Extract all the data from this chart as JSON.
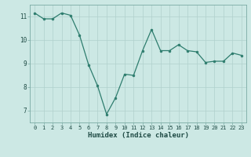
{
  "x": [
    0,
    1,
    2,
    3,
    4,
    5,
    6,
    7,
    8,
    9,
    10,
    11,
    12,
    13,
    14,
    15,
    16,
    17,
    18,
    19,
    20,
    21,
    22,
    23
  ],
  "y": [
    11.15,
    10.9,
    10.9,
    11.15,
    11.05,
    10.2,
    8.95,
    8.05,
    6.85,
    7.55,
    8.55,
    8.5,
    9.55,
    10.45,
    9.55,
    9.55,
    9.8,
    9.55,
    9.5,
    9.05,
    9.1,
    9.1,
    9.45,
    9.35
  ],
  "xlabel": "Humidex (Indice chaleur)",
  "xlim": [
    -0.5,
    23.5
  ],
  "ylim": [
    6.5,
    11.5
  ],
  "yticks": [
    7,
    8,
    9,
    10,
    11
  ],
  "xticks": [
    0,
    1,
    2,
    3,
    4,
    5,
    6,
    7,
    8,
    9,
    10,
    11,
    12,
    13,
    14,
    15,
    16,
    17,
    18,
    19,
    20,
    21,
    22,
    23
  ],
  "line_color": "#2e7d6e",
  "marker_color": "#2e7d6e",
  "bg_color": "#cce8e4",
  "grid_color": "#b0d0cc",
  "spine_color": "#7aaba4",
  "text_color": "#1e4a44",
  "tick_fontsize": 5.0,
  "xlabel_fontsize": 6.5,
  "linewidth": 0.9,
  "markersize": 2.0
}
